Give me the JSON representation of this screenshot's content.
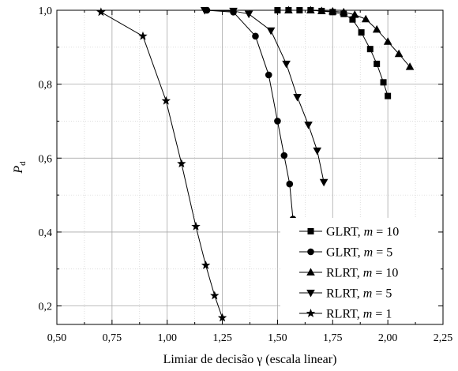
{
  "chart_data": {
    "type": "line",
    "title": "",
    "xlabel": "Limiar de decisão γ (escala linear)",
    "ylabel": {
      "main": "P",
      "sub": "d"
    },
    "xlim": [
      0.5,
      2.25
    ],
    "ylim": [
      0.15,
      1.0
    ],
    "x_ticks": [
      0.5,
      0.75,
      1.0,
      1.25,
      1.5,
      1.75,
      2.0,
      2.25
    ],
    "x_tick_labels": [
      "0,50",
      "0,75",
      "1,00",
      "1,25",
      "1,50",
      "1,75",
      "2,00",
      "2,25"
    ],
    "y_ticks": [
      0.2,
      0.4,
      0.6,
      0.8,
      1.0
    ],
    "y_tick_labels": [
      "0,2",
      "0,4",
      "0,6",
      "0,8",
      "1,0"
    ],
    "grid": true,
    "legend_position": "bottom-right",
    "series": [
      {
        "legend": {
          "prefix": "GLRT, ",
          "var": "m",
          "suffix": " = 10"
        },
        "marker": "square",
        "x": [
          1.5,
          1.55,
          1.6,
          1.65,
          1.7,
          1.75,
          1.8,
          1.84,
          1.88,
          1.92,
          1.95,
          1.98,
          2.0
        ],
        "y": [
          1.0,
          1.0,
          1.0,
          1.0,
          0.998,
          0.995,
          0.99,
          0.975,
          0.94,
          0.895,
          0.855,
          0.805,
          0.768
        ]
      },
      {
        "legend": {
          "prefix": "GLRT, ",
          "var": "m",
          "suffix": " = 5"
        },
        "marker": "circle",
        "x": [
          1.18,
          1.3,
          1.4,
          1.46,
          1.5,
          1.53,
          1.555,
          1.57
        ],
        "y": [
          1.0,
          0.995,
          0.93,
          0.825,
          0.7,
          0.607,
          0.53,
          0.435
        ]
      },
      {
        "legend": {
          "prefix": "RLRT, ",
          "var": "m",
          "suffix": " = 10"
        },
        "marker": "triangle-up",
        "x": [
          1.55,
          1.65,
          1.7,
          1.75,
          1.8,
          1.85,
          1.9,
          1.95,
          2.0,
          2.05,
          2.1
        ],
        "y": [
          1.0,
          1.0,
          0.998,
          0.997,
          0.995,
          0.988,
          0.976,
          0.948,
          0.915,
          0.882,
          0.847
        ]
      },
      {
        "legend": {
          "prefix": "RLRT, ",
          "var": "m",
          "suffix": " = 5"
        },
        "marker": "triangle-down",
        "x": [
          1.17,
          1.3,
          1.37,
          1.47,
          1.54,
          1.59,
          1.64,
          1.68,
          1.71
        ],
        "y": [
          1.0,
          0.998,
          0.99,
          0.945,
          0.855,
          0.765,
          0.69,
          0.62,
          0.535
        ]
      },
      {
        "legend": {
          "prefix": "RLRT, ",
          "var": "m",
          "suffix": " = 1"
        },
        "marker": "star",
        "x": [
          0.7,
          0.89,
          0.995,
          1.065,
          1.13,
          1.175,
          1.215,
          1.25
        ],
        "y": [
          0.995,
          0.93,
          0.755,
          0.585,
          0.415,
          0.31,
          0.228,
          0.168
        ]
      }
    ]
  }
}
